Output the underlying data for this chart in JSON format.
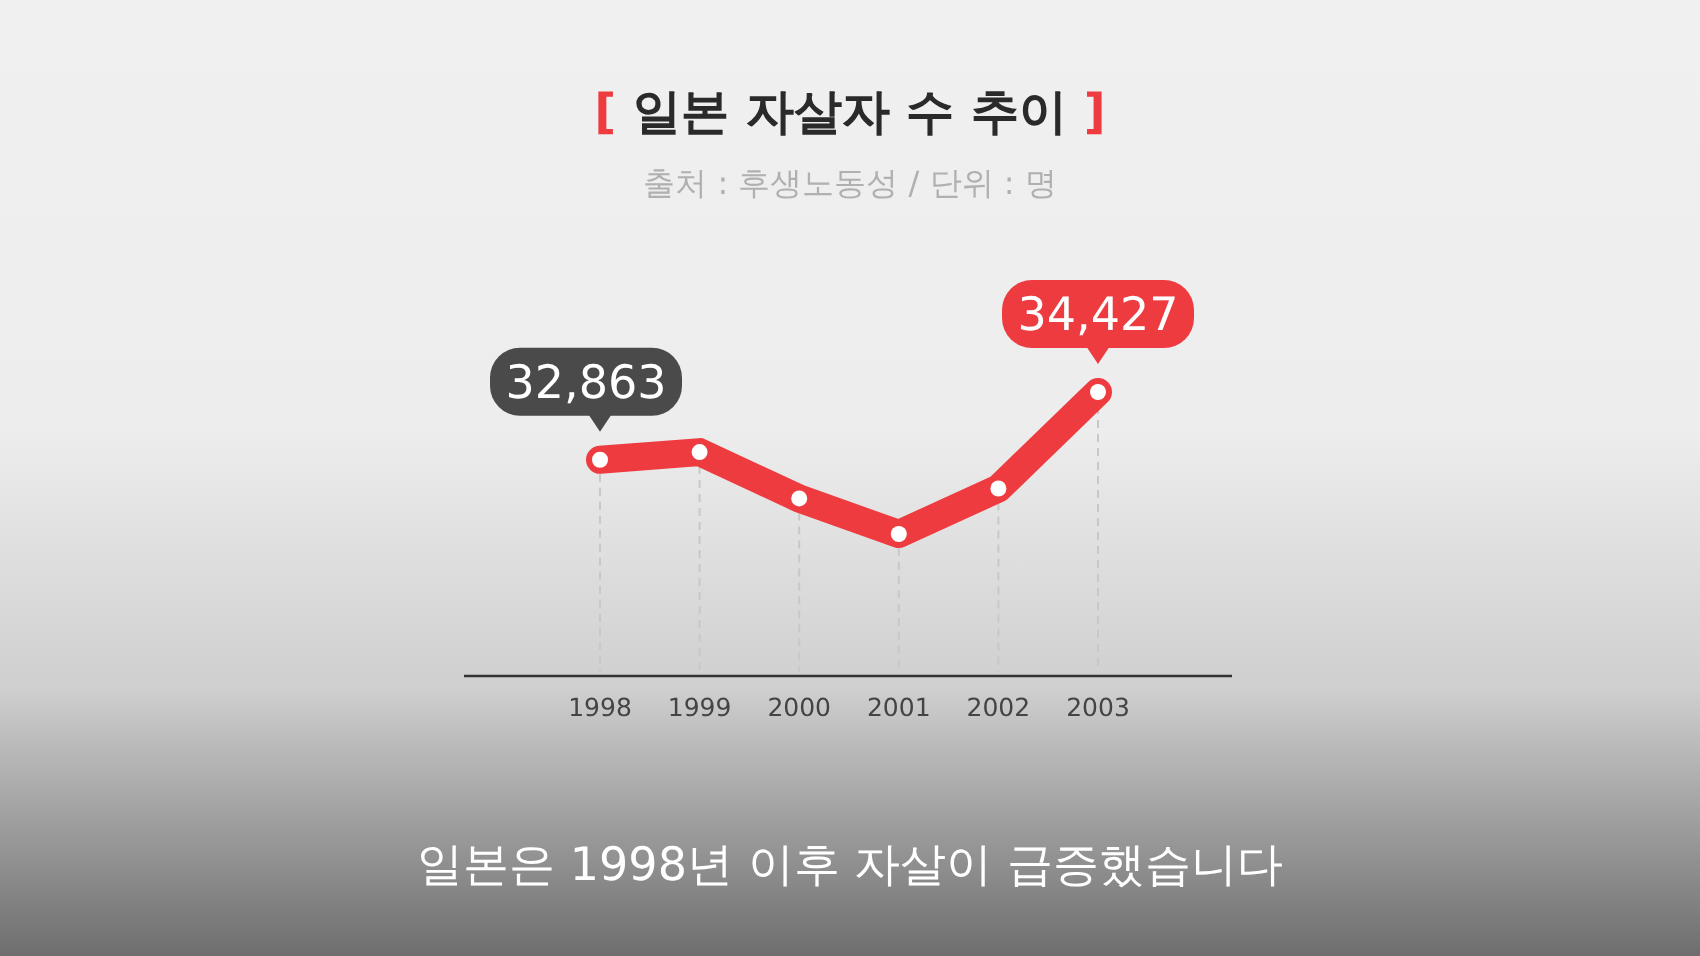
{
  "chart_data": {
    "type": "line",
    "title": "[ 일본 자살자 수 추이 ]",
    "subtitle": "출처 : 후생노동성 / 단위 : 명",
    "categories": [
      "1998",
      "1999",
      "2000",
      "2001",
      "2002",
      "2003"
    ],
    "series": [
      {
        "color": "#ee3b3f",
        "values": [
          32863,
          33040,
          31970,
          31150,
          32200,
          34427
        ],
        "value_labels": [
          "32,863",
          null,
          null,
          null,
          null,
          "34,427"
        ]
      }
    ],
    "marker": "circle",
    "grid": "x",
    "annotations": [
      "일본은 1998년 이후 자살이 급증했습니다"
    ]
  }
}
